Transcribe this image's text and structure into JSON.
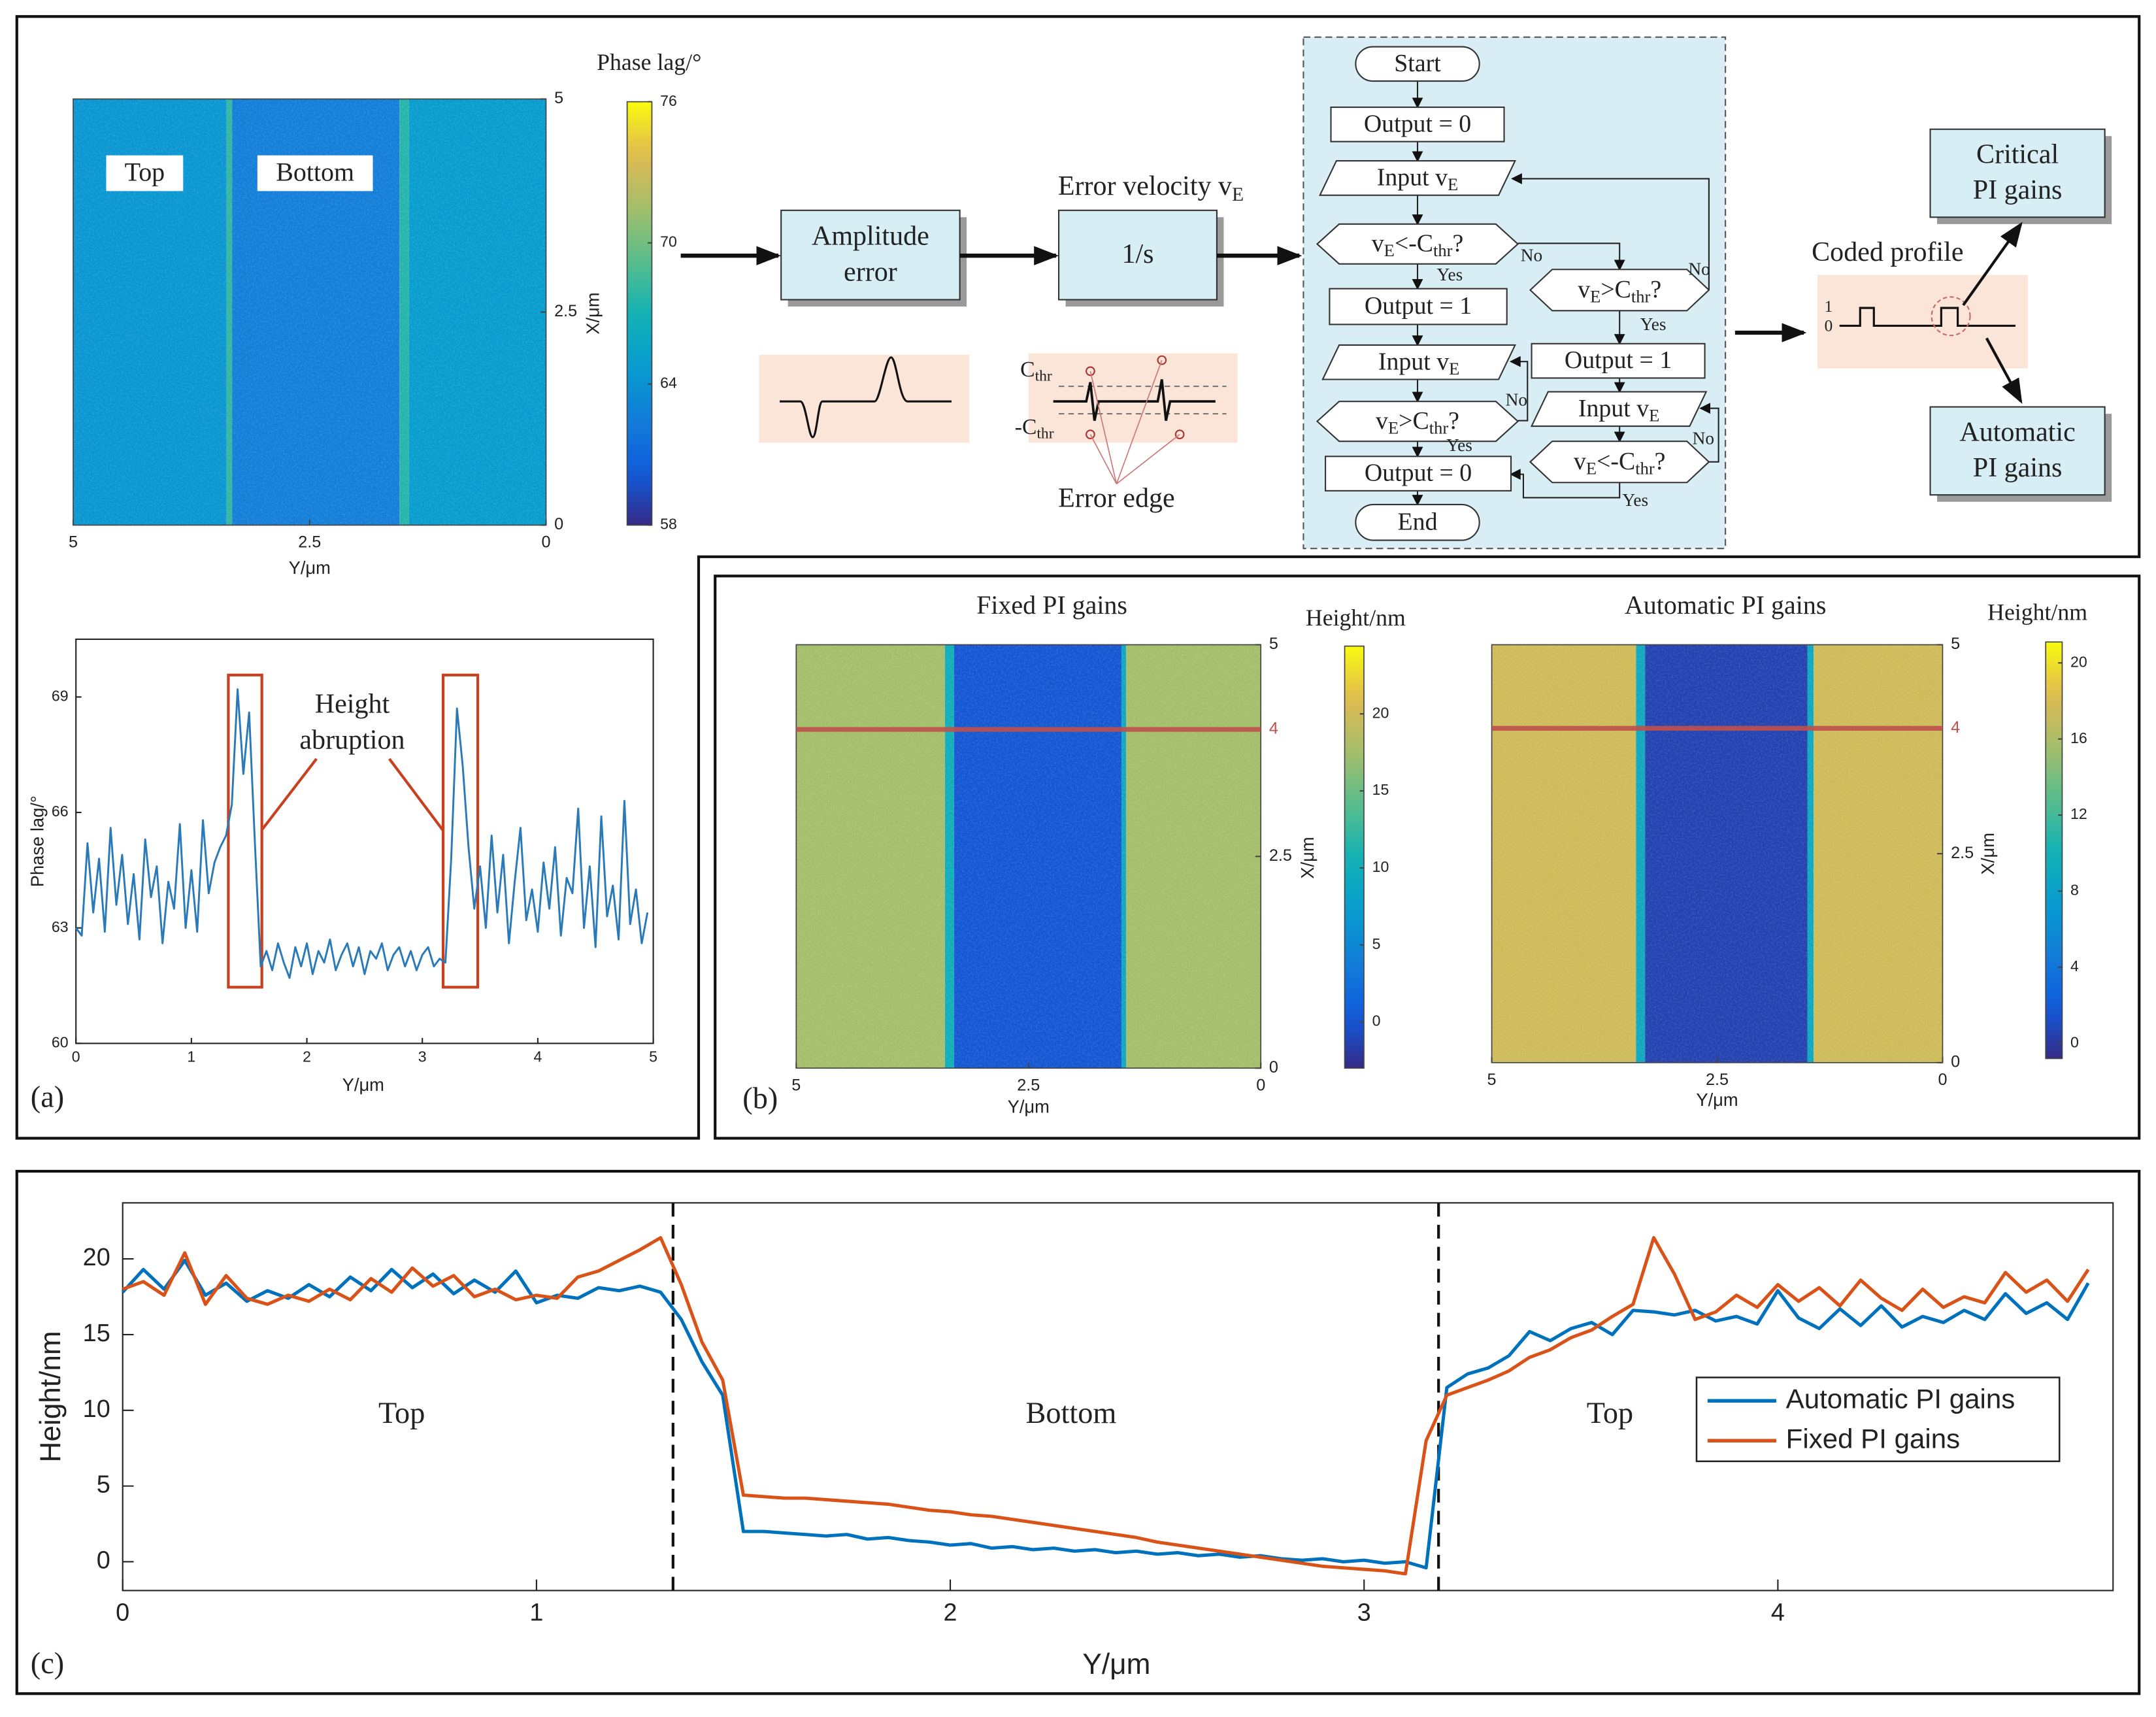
{
  "panel_labels": [
    "(a)",
    "(b)",
    "(c)"
  ],
  "chart_data": [
    {
      "type": "heatmap",
      "xlabel": "Y/μm",
      "ylabel": "X/μm",
      "xlim": [
        5,
        0
      ],
      "xticks": [
        5,
        2.5,
        0
      ],
      "ylim": [
        0,
        5
      ],
      "yticks": [
        0,
        2.5,
        5
      ],
      "labels": [
        "Top",
        "Bottom"
      ],
      "colorbar": {
        "label": "Phase lag/°",
        "clim": [
          58,
          76
        ],
        "ticks": [
          58,
          64,
          70,
          76
        ]
      },
      "regions": [
        {
          "from": 5,
          "to": 3.38,
          "value": 64.3
        },
        {
          "from": 3.38,
          "to": 3.32,
          "value": 68
        },
        {
          "from": 3.32,
          "to": 1.55,
          "value": 62.6
        },
        {
          "from": 1.55,
          "to": 1.45,
          "value": 67.5
        },
        {
          "from": 1.45,
          "to": 0,
          "value": 64.8
        }
      ]
    },
    {
      "type": "line",
      "xlabel": "Y/μm",
      "ylabel": "Phase lag/°",
      "xlim": [
        0,
        5
      ],
      "xticks": [
        0,
        1,
        2,
        3,
        4,
        5
      ],
      "ylim": [
        60,
        70.5
      ],
      "yticks": [
        60,
        63,
        66,
        69
      ],
      "annotation": [
        "Height",
        "abruption"
      ],
      "highlight_color": "#c8401e",
      "highlight_boxes": [
        {
          "x": [
            1.32,
            1.61
          ],
          "y": [
            61.46,
            69.57
          ]
        },
        {
          "x": [
            3.18,
            3.48
          ],
          "y": [
            61.46,
            69.57
          ]
        }
      ],
      "x": [
        0,
        0.05,
        0.1,
        0.15,
        0.2,
        0.25,
        0.3,
        0.35,
        0.4,
        0.45,
        0.5,
        0.55,
        0.6,
        0.65,
        0.7,
        0.75,
        0.8,
        0.85,
        0.9,
        0.95,
        1,
        1.05,
        1.1,
        1.15,
        1.2,
        1.25,
        1.3,
        1.35,
        1.4,
        1.45,
        1.5,
        1.55,
        1.6,
        1.65,
        1.7,
        1.75,
        1.8,
        1.85,
        1.9,
        1.95,
        2,
        2.05,
        2.1,
        2.15,
        2.2,
        2.25,
        2.3,
        2.35,
        2.4,
        2.45,
        2.5,
        2.55,
        2.6,
        2.65,
        2.7,
        2.75,
        2.8,
        2.85,
        2.9,
        2.95,
        3,
        3.05,
        3.1,
        3.15,
        3.2,
        3.25,
        3.3,
        3.35,
        3.4,
        3.45,
        3.5,
        3.55,
        3.6,
        3.65,
        3.7,
        3.75,
        3.8,
        3.85,
        3.9,
        3.95,
        4,
        4.05,
        4.1,
        4.15,
        4.2,
        4.25,
        4.3,
        4.35,
        4.4,
        4.45,
        4.5,
        4.55,
        4.6,
        4.65,
        4.7,
        4.75,
        4.8,
        4.85,
        4.9,
        4.95
      ],
      "series": [
        {
          "color": "#2a7ab9",
          "values": [
            63.0,
            62.8,
            65.2,
            63.4,
            64.8,
            62.9,
            65.6,
            63.6,
            64.9,
            63.1,
            64.4,
            62.7,
            65.3,
            63.8,
            64.6,
            62.6,
            64.2,
            63.5,
            65.7,
            63.0,
            64.5,
            62.9,
            65.8,
            63.9,
            64.7,
            65.1,
            65.4,
            66.2,
            69.2,
            67.0,
            68.6,
            65.2,
            62.0,
            62.4,
            61.9,
            62.6,
            62.1,
            61.7,
            62.5,
            62.0,
            62.6,
            61.8,
            62.4,
            62.1,
            62.7,
            61.9,
            62.3,
            62.6,
            62.0,
            62.5,
            61.8,
            62.4,
            62.2,
            62.6,
            61.9,
            62.3,
            62.5,
            62.0,
            62.4,
            61.9,
            62.3,
            62.5,
            62.0,
            62.2,
            62.1,
            64.8,
            68.7,
            67.2,
            65.1,
            63.5,
            64.6,
            63.0,
            65.4,
            63.4,
            64.9,
            62.6,
            64.2,
            65.6,
            63.2,
            64.0,
            62.9,
            64.7,
            63.5,
            65.1,
            62.8,
            64.3,
            63.9,
            66.1,
            63.0,
            64.6,
            62.5,
            65.9,
            63.3,
            64.1,
            62.7,
            66.3,
            63.1,
            64.0,
            62.6,
            63.4
          ]
        }
      ]
    },
    {
      "type": "heatmap",
      "title": "Fixed PI gains",
      "xlabel": "Y/μm",
      "ylabel": "X/μm",
      "xlim": [
        5,
        0
      ],
      "xticks": [
        5,
        2.5,
        0
      ],
      "ylim": [
        0,
        5
      ],
      "yticks": [
        0,
        2.5,
        5
      ],
      "marker": 4,
      "marker_color": "#c0504d",
      "colorbar": {
        "label": "Height/nm",
        "clim": [
          -3,
          24.4
        ],
        "ticks": [
          0,
          5,
          10,
          15,
          20
        ]
      },
      "regions": [
        {
          "from": 5,
          "to": 3.4,
          "value": 17.5
        },
        {
          "from": 3.4,
          "to": 3.3,
          "value": 10
        },
        {
          "from": 3.3,
          "to": 1.5,
          "value": 0
        },
        {
          "from": 1.5,
          "to": 1.45,
          "value": 9
        },
        {
          "from": 1.45,
          "to": 0,
          "value": 17.5
        }
      ]
    },
    {
      "type": "heatmap",
      "title": "Automatic PI gains",
      "xlabel": "Y/μm",
      "ylabel": "X/μm",
      "xlim": [
        5,
        0
      ],
      "xticks": [
        5,
        2.5,
        0
      ],
      "ylim": [
        0,
        5
      ],
      "yticks": [
        0,
        2.5,
        5
      ],
      "marker": 4,
      "marker_color": "#c0504d",
      "colorbar": {
        "label": "Height/nm",
        "clim": [
          -0.8,
          21.1
        ],
        "ticks": [
          0,
          4,
          8,
          12,
          16,
          20
        ]
      },
      "regions": [
        {
          "from": 5,
          "to": 3.4,
          "value": 17.5
        },
        {
          "from": 3.4,
          "to": 3.3,
          "value": 9
        },
        {
          "from": 3.3,
          "to": 1.5,
          "value": 0.5
        },
        {
          "from": 1.5,
          "to": 1.43,
          "value": 9
        },
        {
          "from": 1.43,
          "to": 0,
          "value": 17.5
        }
      ]
    },
    {
      "type": "line",
      "xlabel": "Y/μm",
      "ylabel": "Height/nm",
      "xlim": [
        0,
        4.81
      ],
      "xticks": [
        0,
        1,
        2,
        3,
        4
      ],
      "ylim": [
        -1.9,
        23.7
      ],
      "yticks": [
        0,
        5,
        10,
        15,
        20
      ],
      "boundaries": [
        1.33,
        3.18
      ],
      "region_labels": [
        "Top",
        "Bottom",
        "Top"
      ],
      "legend": "right",
      "x": [
        0,
        0.05,
        0.1,
        0.15,
        0.2,
        0.25,
        0.3,
        0.35,
        0.4,
        0.45,
        0.5,
        0.55,
        0.6,
        0.65,
        0.7,
        0.75,
        0.8,
        0.85,
        0.9,
        0.95,
        1,
        1.05,
        1.1,
        1.15,
        1.2,
        1.25,
        1.3,
        1.35,
        1.4,
        1.45,
        1.5,
        1.55,
        1.6,
        1.65,
        1.7,
        1.75,
        1.8,
        1.85,
        1.9,
        1.95,
        2,
        2.05,
        2.1,
        2.15,
        2.2,
        2.25,
        2.3,
        2.35,
        2.4,
        2.45,
        2.5,
        2.55,
        2.6,
        2.65,
        2.7,
        2.75,
        2.8,
        2.85,
        2.9,
        2.95,
        3,
        3.05,
        3.1,
        3.15,
        3.2,
        3.25,
        3.3,
        3.35,
        3.4,
        3.45,
        3.5,
        3.55,
        3.6,
        3.65,
        3.7,
        3.75,
        3.8,
        3.85,
        3.9,
        3.95,
        4,
        4.05,
        4.1,
        4.15,
        4.2,
        4.25,
        4.3,
        4.35,
        4.4,
        4.45,
        4.5,
        4.55,
        4.6,
        4.65,
        4.7,
        4.75
      ],
      "series": [
        {
          "name": "Automatic PI gains",
          "color": "#0072bd",
          "values": [
            17.8,
            19.3,
            18.0,
            19.9,
            17.6,
            18.4,
            17.2,
            17.9,
            17.4,
            18.3,
            17.5,
            18.8,
            17.9,
            19.3,
            18.1,
            19.0,
            17.7,
            18.6,
            17.8,
            19.2,
            17.1,
            17.6,
            17.4,
            18.1,
            17.9,
            18.2,
            17.8,
            16.0,
            13.2,
            11.0,
            2.0,
            2.0,
            1.9,
            1.8,
            1.7,
            1.8,
            1.5,
            1.6,
            1.4,
            1.3,
            1.1,
            1.2,
            0.9,
            1.0,
            0.8,
            0.9,
            0.7,
            0.8,
            0.6,
            0.7,
            0.5,
            0.6,
            0.4,
            0.5,
            0.3,
            0.4,
            0.2,
            0.1,
            0.2,
            0.0,
            0.1,
            -0.1,
            0.0,
            -0.4,
            11.5,
            12.4,
            12.8,
            13.6,
            15.2,
            14.6,
            15.4,
            15.8,
            15.0,
            16.6,
            16.5,
            16.3,
            16.6,
            15.9,
            16.2,
            15.7,
            17.9,
            16.1,
            15.4,
            16.7,
            15.6,
            16.9,
            15.5,
            16.2,
            15.8,
            16.6,
            16.0,
            17.7,
            16.4,
            17.1,
            16.0,
            18.4
          ]
        },
        {
          "name": "Fixed PI gains",
          "color": "#d95319",
          "values": [
            18.0,
            18.5,
            17.6,
            20.4,
            17.0,
            18.9,
            17.4,
            17.0,
            17.6,
            17.2,
            18.0,
            17.3,
            18.7,
            17.8,
            19.4,
            18.2,
            18.9,
            17.5,
            18.0,
            17.3,
            17.6,
            17.4,
            18.8,
            19.2,
            19.9,
            20.6,
            21.4,
            18.3,
            14.5,
            12.0,
            4.4,
            4.3,
            4.2,
            4.2,
            4.1,
            4.0,
            3.9,
            3.8,
            3.6,
            3.4,
            3.3,
            3.1,
            3.0,
            2.8,
            2.6,
            2.4,
            2.2,
            2.0,
            1.8,
            1.6,
            1.3,
            1.1,
            0.9,
            0.7,
            0.5,
            0.3,
            0.1,
            -0.1,
            -0.3,
            -0.4,
            -0.5,
            -0.6,
            -0.8,
            8.0,
            11.0,
            11.5,
            12.0,
            12.6,
            13.5,
            14.0,
            14.8,
            15.3,
            16.2,
            17.0,
            21.4,
            19.0,
            16.0,
            16.5,
            17.6,
            16.8,
            18.3,
            17.2,
            18.1,
            16.9,
            18.6,
            17.4,
            16.6,
            18.0,
            16.8,
            17.5,
            17.1,
            19.1,
            17.8,
            18.6,
            17.2,
            19.3
          ]
        }
      ]
    }
  ],
  "diagram": {
    "blocks": [
      {
        "lines": [
          "Amplitude",
          "error"
        ]
      },
      {
        "lines": [
          "1/s"
        ]
      },
      {
        "lines": [
          "Critical",
          "PI gains"
        ]
      },
      {
        "lines": [
          "Automatic",
          "PI gains"
        ]
      }
    ],
    "error_velocity": [
      "Error velocity v",
      "E"
    ],
    "thresholds": [
      [
        "C",
        "thr"
      ],
      [
        "-C",
        "thr"
      ]
    ],
    "error_edge": "Error edge",
    "coded_profile": "Coded profile",
    "profile_levels": [
      "1",
      "0"
    ],
    "flow_nodes": [
      {
        "shape": "terminal",
        "text": [
          "Start"
        ]
      },
      {
        "shape": "process",
        "text": [
          "Output = 0"
        ]
      },
      {
        "shape": "io",
        "text": [
          "Input v",
          "E"
        ]
      },
      {
        "shape": "decision",
        "text": [
          "v",
          "E",
          "<-C",
          "thr",
          "?"
        ]
      },
      {
        "shape": "process",
        "text": [
          "Output = 1"
        ]
      },
      {
        "shape": "io",
        "text": [
          "Input v",
          "E"
        ]
      },
      {
        "shape": "decision",
        "text": [
          "v",
          "E",
          ">C",
          "thr",
          "?"
        ]
      },
      {
        "shape": "process",
        "text": [
          "Output = 0"
        ]
      },
      {
        "shape": "terminal",
        "text": [
          "End"
        ]
      },
      {
        "shape": "decision",
        "text": [
          "v",
          "E",
          ">C",
          "thr",
          "?"
        ]
      },
      {
        "shape": "process",
        "text": [
          "Output = 1"
        ]
      },
      {
        "shape": "io",
        "text": [
          "Input v",
          "E"
        ]
      },
      {
        "shape": "decision",
        "text": [
          "v",
          "E",
          "<-C",
          "thr",
          "?"
        ]
      }
    ],
    "branches": [
      "No",
      "Yes",
      "No",
      "Yes",
      "No",
      "Yes",
      "No",
      "Yes"
    ]
  }
}
